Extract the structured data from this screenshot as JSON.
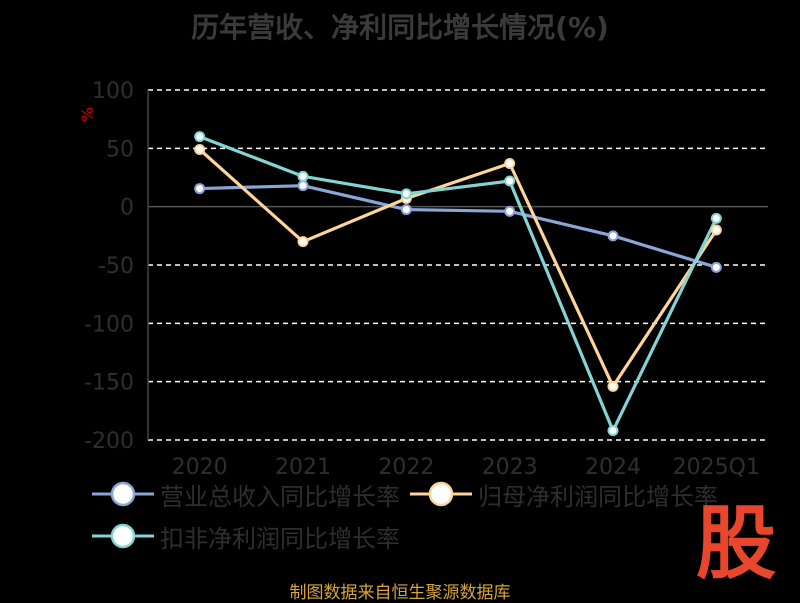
{
  "source_note": "制图数据来自恒生聚源数据库",
  "logo_text": "股",
  "chart_data": {
    "type": "line",
    "title": "历年营收、净利同比增长情况(%)",
    "ylabel": "%",
    "xlabel": "",
    "categories": [
      "2020",
      "2021",
      "2022",
      "2023",
      "2024",
      "2025Q1"
    ],
    "ylim": [
      -200,
      100
    ],
    "yticks": [
      100,
      50,
      0,
      -50,
      -100,
      -150,
      -200
    ],
    "grid": "dashed horizontal",
    "legend_position": "bottom",
    "series": [
      {
        "name": "营业总收入同比增长率",
        "color": "#8aa5d6",
        "values": [
          15.5,
          18,
          -2.5,
          -4,
          -25,
          -52
        ]
      },
      {
        "name": "归母净利润同比增长率",
        "color": "#fdd49a",
        "values": [
          49,
          -30,
          7,
          37,
          -154,
          -20
        ]
      },
      {
        "name": "扣非净利润同比增长率",
        "color": "#84d4d4",
        "values": [
          60,
          26,
          11,
          22,
          -192,
          -10
        ]
      }
    ]
  }
}
